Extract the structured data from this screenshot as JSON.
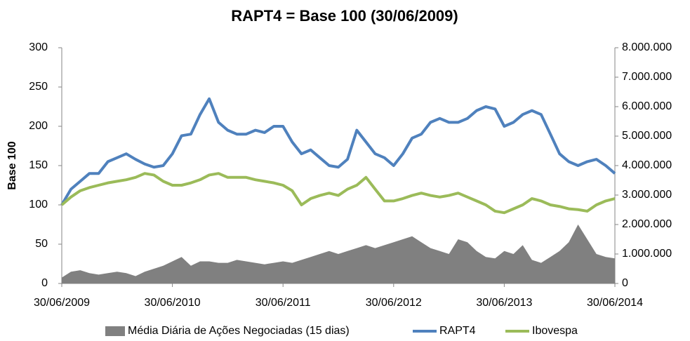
{
  "chart_data": {
    "type": "line",
    "title": "RAPT4 = Base 100 (30/06/2009)",
    "y_label": "Base 100",
    "x": [
      2009.5,
      2009.583,
      2009.667,
      2009.75,
      2009.833,
      2009.917,
      2010,
      2010.083,
      2010.167,
      2010.25,
      2010.333,
      2010.417,
      2010.5,
      2010.583,
      2010.667,
      2010.75,
      2010.833,
      2010.917,
      2011,
      2011.083,
      2011.167,
      2011.25,
      2011.333,
      2011.417,
      2011.5,
      2011.583,
      2011.667,
      2011.75,
      2011.833,
      2011.917,
      2012,
      2012.083,
      2012.167,
      2012.25,
      2012.333,
      2012.417,
      2012.5,
      2012.583,
      2012.667,
      2012.75,
      2012.833,
      2012.917,
      2013,
      2013.083,
      2013.167,
      2013.25,
      2013.333,
      2013.417,
      2013.5,
      2013.583,
      2013.667,
      2013.75,
      2013.833,
      2013.917,
      2014,
      2014.083,
      2014.167,
      2014.25,
      2014.333,
      2014.417,
      2014.5
    ],
    "series": [
      {
        "name": "Média Diária de Ações Negociadas (15 dias)",
        "type": "area",
        "axis": "y2",
        "color": "#808080",
        "values": [
          200000,
          400000,
          450000,
          350000,
          300000,
          350000,
          400000,
          350000,
          250000,
          400000,
          500000,
          600000,
          750000,
          900000,
          600000,
          750000,
          750000,
          700000,
          700000,
          800000,
          750000,
          700000,
          650000,
          700000,
          750000,
          700000,
          800000,
          900000,
          1000000,
          1100000,
          1000000,
          1100000,
          1200000,
          1300000,
          1200000,
          1300000,
          1400000,
          1500000,
          1600000,
          1400000,
          1200000,
          1100000,
          1000000,
          1500000,
          1400000,
          1100000,
          900000,
          850000,
          1100000,
          1000000,
          1300000,
          800000,
          700000,
          900000,
          1100000,
          1400000,
          2000000,
          1500000,
          1000000,
          900000,
          850000
        ]
      },
      {
        "name": "RAPT4",
        "type": "line",
        "color": "#4f81bd",
        "values": [
          100,
          120,
          130,
          140,
          140,
          155,
          160,
          165,
          158,
          152,
          148,
          150,
          165,
          188,
          190,
          215,
          235,
          205,
          195,
          190,
          190,
          195,
          192,
          200,
          200,
          180,
          165,
          170,
          160,
          150,
          148,
          158,
          195,
          180,
          165,
          160,
          150,
          165,
          185,
          190,
          205,
          210,
          205,
          205,
          210,
          220,
          225,
          222,
          200,
          205,
          215,
          220,
          215,
          190,
          165,
          155,
          150,
          155,
          158,
          150,
          140
        ]
      },
      {
        "name": "Ibovespa",
        "type": "line",
        "color": "#9bbb59",
        "values": [
          100,
          110,
          118,
          122,
          125,
          128,
          130,
          132,
          135,
          140,
          138,
          130,
          125,
          125,
          128,
          132,
          138,
          140,
          135,
          135,
          135,
          132,
          130,
          128,
          125,
          118,
          100,
          108,
          112,
          115,
          112,
          120,
          125,
          135,
          120,
          105,
          105,
          108,
          112,
          115,
          112,
          110,
          112,
          115,
          110,
          105,
          100,
          92,
          90,
          95,
          100,
          108,
          105,
          100,
          98,
          95,
          94,
          92,
          100,
          105,
          108
        ]
      }
    ],
    "xlim": [
      2009.5,
      2014.5
    ],
    "xticks": [
      {
        "value": 2009.5,
        "label": "30/06/2009"
      },
      {
        "value": 2010.5,
        "label": "30/06/2010"
      },
      {
        "value": 2011.5,
        "label": "30/06/2011"
      },
      {
        "value": 2012.5,
        "label": "30/06/2012"
      },
      {
        "value": 2013.5,
        "label": "30/06/2013"
      },
      {
        "value": 2014.5,
        "label": "30/06/2014"
      }
    ],
    "ylim": [
      0,
      300
    ],
    "yticks": [
      0,
      50,
      100,
      150,
      200,
      250,
      300
    ],
    "y2lim": [
      0,
      8000000
    ],
    "y2ticks": [
      0,
      {
        "value": 1000000,
        "label": "1.000.000"
      },
      {
        "value": 2000000,
        "label": "2.000.000"
      },
      {
        "value": 3000000,
        "label": "3.000.000"
      },
      {
        "value": 4000000,
        "label": "4.000.000"
      },
      {
        "value": 5000000,
        "label": "5.000.000"
      },
      {
        "value": 6000000,
        "label": "6.000.000"
      },
      {
        "value": 7000000,
        "label": "7.000.000"
      },
      {
        "value": 8000000,
        "label": "8.000.000"
      }
    ],
    "legend": "bottom"
  }
}
